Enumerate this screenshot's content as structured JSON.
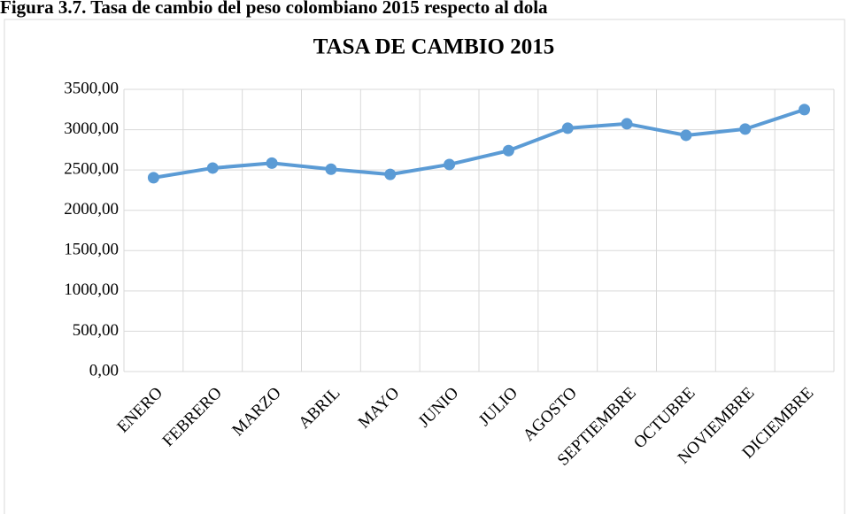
{
  "chart_data": {
    "type": "line",
    "caption": "Figura 3.7. Tasa de cambio del peso colombiano 2015 respecto al dola",
    "title": "TASA DE CAMBIO 2015",
    "categories": [
      "ENERO",
      "FEBRERO",
      "MARZO",
      "ABRIL",
      "MAYO",
      "JUNIO",
      "JULIO",
      "AGOSTO",
      "SEPTIEMBRE",
      "OCTUBRE",
      "NOVIEMBRE",
      "DICIEMBRE"
    ],
    "series": [
      {
        "name": "Tasa de cambio",
        "color": "#5b9bd5",
        "values": [
          2404,
          2524,
          2585,
          2510,
          2445,
          2568,
          2740,
          3018,
          3073,
          2930,
          3008,
          3249
        ]
      }
    ],
    "ylim": [
      0,
      3500
    ],
    "yticks": [
      {
        "value": 0,
        "label": "0,00"
      },
      {
        "value": 500,
        "label": "500,00"
      },
      {
        "value": 1000,
        "label": "1000,00"
      },
      {
        "value": 1500,
        "label": "1500,00"
      },
      {
        "value": 2000,
        "label": "2000,00"
      },
      {
        "value": 2500,
        "label": "2500,00"
      },
      {
        "value": 3000,
        "label": "3000,00"
      },
      {
        "value": 3500,
        "label": "3500,00"
      }
    ],
    "grid": true
  }
}
